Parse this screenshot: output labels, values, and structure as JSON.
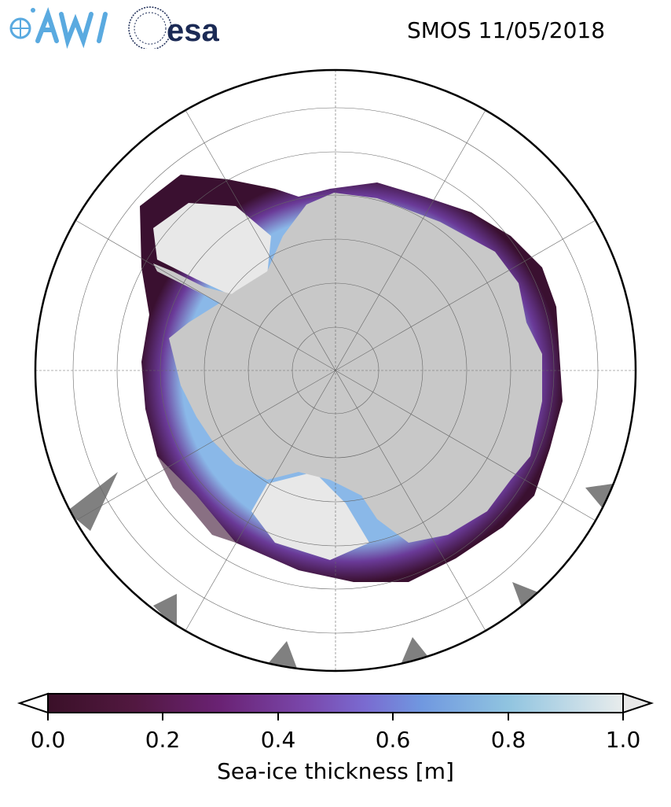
{
  "header": {
    "title": "SMOS 11/05/2018"
  },
  "logos": [
    {
      "name": "AWI",
      "color": "#5aaae0"
    },
    {
      "name": "esa",
      "color": "#1b2a55"
    }
  ],
  "map": {
    "projection": "south-polar-stereographic",
    "region": "Antarctica",
    "land_color": "#c8c8c8",
    "no_data_color": "#808080",
    "grid": true
  },
  "colorbar": {
    "label": "Sea-ice thickness [m]",
    "ticks": [
      "0.0",
      "0.2",
      "0.4",
      "0.6",
      "0.8",
      "1.0"
    ],
    "range": [
      0.0,
      1.0
    ],
    "extend": "both",
    "colors": [
      "#3a1028",
      "#5a1a52",
      "#6a2a84",
      "#7a58c0",
      "#7090e0",
      "#80b8e0",
      "#b0d8e0",
      "#e8ecec"
    ]
  }
}
